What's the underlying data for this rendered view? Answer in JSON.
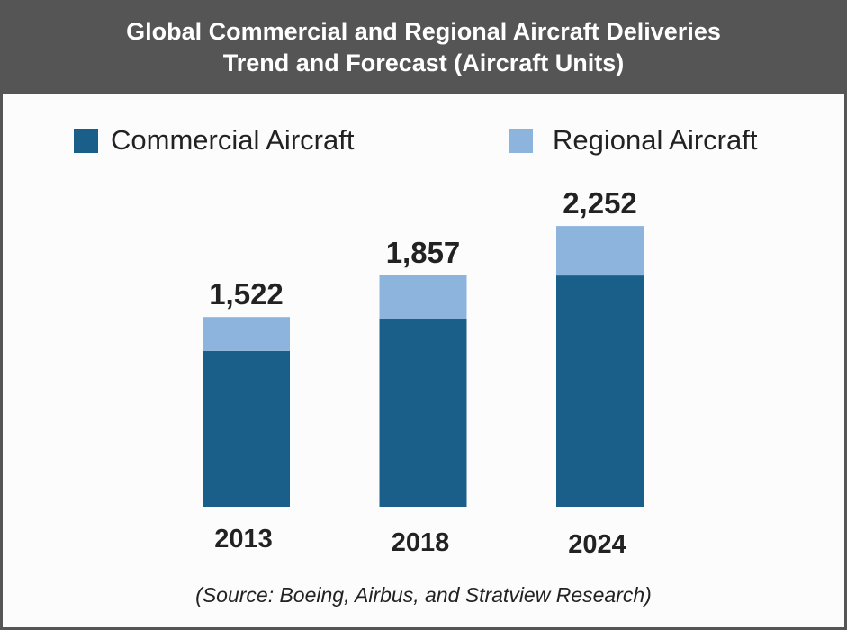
{
  "header": {
    "title_line1": "Global Commercial and Regional Aircraft Deliveries",
    "title_line2": "Trend and Forecast (Aircraft Units)"
  },
  "source": "(Source: Boeing, Airbus, and Stratview Research)",
  "colors": {
    "commercial": "#1a5f8a",
    "regional": "#8db4dc",
    "header_bg": "#555555"
  },
  "chart_data": {
    "type": "bar",
    "stacked": true,
    "title": "Global Commercial and Regional Aircraft Deliveries Trend and Forecast (Aircraft Units)",
    "xlabel": "",
    "ylabel": "",
    "categories": [
      "2013",
      "2018",
      "2024"
    ],
    "series": [
      {
        "name": "Commercial Aircraft",
        "values": [
          1250,
          1509,
          1855
        ]
      },
      {
        "name": "Regional Aircraft",
        "values": [
          272,
          348,
          397
        ]
      }
    ],
    "totals": [
      1522,
      1857,
      2252
    ],
    "total_labels": [
      "1,522",
      "1,857",
      "2,252"
    ],
    "ylim": [
      0,
      2400
    ],
    "grid": false,
    "legend": "top",
    "annotation": "(Source: Boeing, Airbus, and Stratview Research)"
  }
}
